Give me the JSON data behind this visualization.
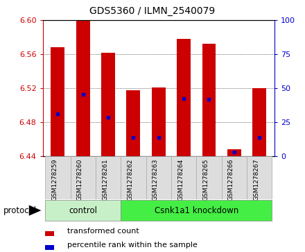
{
  "title": "GDS5360 / ILMN_2540079",
  "samples": [
    "GSM1278259",
    "GSM1278260",
    "GSM1278261",
    "GSM1278262",
    "GSM1278263",
    "GSM1278264",
    "GSM1278265",
    "GSM1278266",
    "GSM1278267"
  ],
  "bar_bottoms": [
    6.44,
    6.44,
    6.44,
    6.44,
    6.44,
    6.44,
    6.44,
    6.44,
    6.44
  ],
  "bar_tops": [
    6.568,
    6.6,
    6.562,
    6.518,
    6.521,
    6.578,
    6.572,
    6.448,
    6.52
  ],
  "blue_positions": [
    6.49,
    6.513,
    6.486,
    6.462,
    6.462,
    6.508,
    6.507,
    6.445,
    6.462
  ],
  "ylim_left": [
    6.44,
    6.6
  ],
  "ylim_right": [
    0,
    100
  ],
  "yticks_left": [
    6.44,
    6.48,
    6.52,
    6.56,
    6.6
  ],
  "yticks_right": [
    0,
    25,
    50,
    75,
    100
  ],
  "left_color": "#cc0000",
  "right_color": "#0000cc",
  "bar_color": "#cc0000",
  "blue_color": "#0000cc",
  "ctrl_color": "#c8f0c8",
  "kd_color": "#44ee44",
  "grid_color": "#000000",
  "bg_color": "#ffffff",
  "bar_width": 0.55,
  "protocol_label": "protocol",
  "ctrl_label": "control",
  "kd_label": "Csnk1a1 knockdown",
  "ctrl_samples": 3,
  "kd_samples": 6,
  "legend_red_label": "transformed count",
  "legend_blue_label": "percentile rank within the sample"
}
